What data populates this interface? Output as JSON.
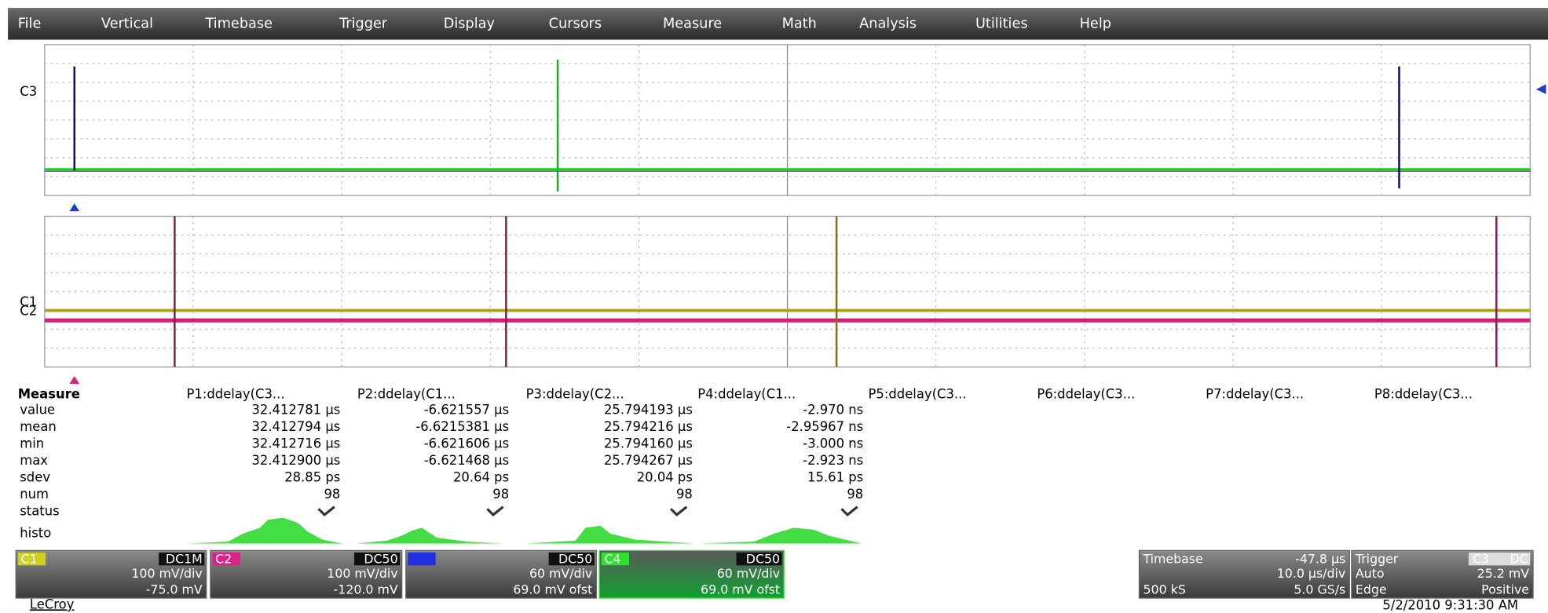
{
  "menu": [
    "File",
    "Vertical",
    "Timebase",
    "Trigger",
    "Display",
    "Cursors",
    "Measure",
    "Math",
    "Analysis",
    "Utilities",
    "Help"
  ],
  "grid_top": {
    "labels": [
      "C3"
    ]
  },
  "grid_bottom": {
    "labels": [
      "C1",
      "C2"
    ]
  },
  "measure": {
    "title": "Measure",
    "columns": [
      "P1:ddelay(C3...",
      "P2:ddelay(C1...",
      "P3:ddelay(C2...",
      "P4:ddelay(C1...",
      "P5:ddelay(C3...",
      "P6:ddelay(C3...",
      "P7:ddelay(C3...",
      "P8:ddelay(C3..."
    ],
    "row_labels": [
      "value",
      "mean",
      "min",
      "max",
      "sdev",
      "num",
      "status",
      "histo"
    ],
    "rows": [
      [
        "32.412781 µs",
        "-6.621557 µs",
        "25.794193 µs",
        "-2.970 ns"
      ],
      [
        "32.412794 µs",
        "-6.6215381 µs",
        "25.794216 µs",
        "-2.95967 ns"
      ],
      [
        "32.412716 µs",
        "-6.621606 µs",
        "25.794160 µs",
        "-3.000 ns"
      ],
      [
        "32.412900 µs",
        "-6.621468 µs",
        "25.794267 µs",
        "-2.923 ns"
      ],
      [
        "28.85 ps",
        "20.64 ps",
        "20.04 ps",
        "15.61 ps"
      ],
      [
        "98",
        "98",
        "98",
        "98"
      ]
    ]
  },
  "channels": [
    {
      "name": "C1",
      "coupling": "DC1M",
      "scale": "100 mV/div",
      "offset": "-75.0 mV"
    },
    {
      "name": "C2",
      "coupling": "DC50",
      "scale": "100 mV/div",
      "offset": "-120.0 mV"
    },
    {
      "coupling": "DC50",
      "scale": "60 mV/div",
      "offset": "69.0 mV ofst"
    },
    {
      "name": "C4",
      "coupling": "DC50",
      "scale": "60 mV/div",
      "offset": "69.0 mV ofst"
    }
  ],
  "timebase": {
    "title": "Timebase",
    "delay": "-47.8 µs",
    "scale": "10.0 µs/div",
    "samples": "500 kS",
    "rate": "5.0 GS/s"
  },
  "trigger": {
    "title": "Trigger",
    "source": "C3",
    "coupling": "DC",
    "mode": "Auto",
    "level": "25.2 mV",
    "type": "Edge",
    "slope": "Positive"
  },
  "brand": "LeCroy",
  "datetime": "5/2/2010 9:31:30 AM"
}
